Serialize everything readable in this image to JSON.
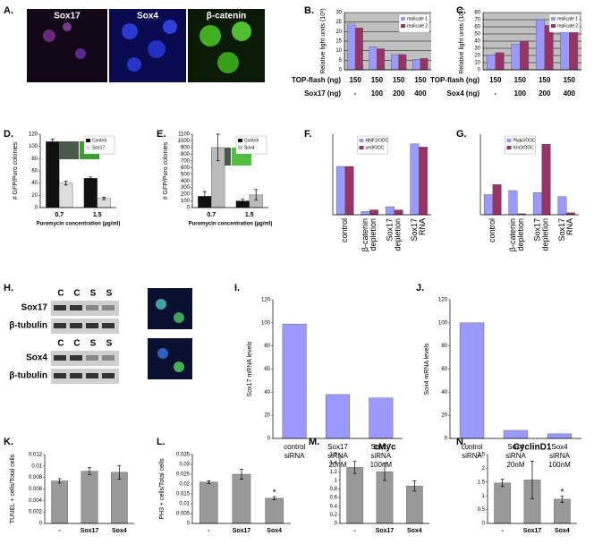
{
  "images": {
    "panel": "A.",
    "labels": [
      "Sox17",
      "Sox4",
      "β-catenin"
    ]
  },
  "blots": {
    "panel": "H.",
    "groups": [
      {
        "lanes": [
          "C",
          "C",
          "S",
          "S"
        ],
        "rows": [
          "Sox17",
          "β-tubulin"
        ]
      },
      {
        "lanes": [
          "C",
          "C",
          "S",
          "S"
        ],
        "rows": [
          "Sox4",
          "β-tubulin"
        ]
      }
    ]
  },
  "chart_data": [
    {
      "type": "bar",
      "panel": "B.",
      "ylabel": "Relative light units (10³)",
      "ylim": [
        0,
        30
      ],
      "yticks": [
        0,
        5,
        10,
        15,
        20,
        25,
        30
      ],
      "grid": true,
      "plot_background": "#c0c0c0",
      "legend": "upper right",
      "series": [
        {
          "name": "replicate 1",
          "color": "#9999ff",
          "values": [
            24,
            12,
            8,
            5.5
          ]
        },
        {
          "name": "replicate 2",
          "color": "#993366",
          "values": [
            22,
            11,
            8,
            6
          ]
        }
      ],
      "table": [
        {
          "label": "TOP-flash (ng)",
          "cells": [
            "150",
            "150",
            "150",
            "150"
          ]
        },
        {
          "label": "Sox17 (ng)",
          "cells": [
            "-",
            "100",
            "200",
            "400"
          ]
        }
      ]
    },
    {
      "type": "bar",
      "panel": "C.",
      "ylabel": "Relative light units (10³)",
      "ylim": [
        0,
        80
      ],
      "yticks": [
        0,
        10,
        20,
        30,
        40,
        50,
        60,
        70,
        80
      ],
      "grid": true,
      "plot_background": "#c0c0c0",
      "legend": "upper right",
      "series": [
        {
          "name": "replicate 1",
          "color": "#9999ff",
          "values": [
            21,
            36,
            70,
            54
          ]
        },
        {
          "name": "replicate 2",
          "color": "#993366",
          "values": [
            24,
            40,
            62,
            66
          ]
        }
      ],
      "table": [
        {
          "label": "TOP-flash (ng)",
          "cells": [
            "150",
            "150",
            "150",
            "150"
          ]
        },
        {
          "label": "Sox4 (ng)",
          "cells": [
            "-",
            "100",
            "200",
            "400"
          ]
        }
      ]
    },
    {
      "type": "bar",
      "panel": "D.",
      "ylabel": "# GFP/Puro colonies",
      "xlabel": "Puromycin concentration (µg/ml)",
      "ylim": [
        0,
        120
      ],
      "yticks": [
        0,
        20,
        40,
        60,
        80,
        100,
        120
      ],
      "legend": "upper right",
      "categories": [
        "0.7",
        "1.5"
      ],
      "series": [
        {
          "name": "Control",
          "color": "#111111",
          "values": [
            108,
            48
          ],
          "errors": [
            4,
            2
          ]
        },
        {
          "name": "Sox17",
          "color": "#dddddd",
          "values": [
            40,
            15
          ],
          "errors": [
            3,
            2
          ]
        }
      ]
    },
    {
      "type": "bar",
      "panel": "E.",
      "ylabel": "# GFP/Puro colonies",
      "xlabel": "Puromycin concentration (µg/ml)",
      "ylim": [
        0,
        1100
      ],
      "yticks": [
        0,
        100,
        200,
        300,
        400,
        500,
        600,
        700,
        800,
        900,
        1000,
        1100
      ],
      "legend": "upper right",
      "categories": [
        "0.7",
        "1.5"
      ],
      "series": [
        {
          "name": "Control",
          "color": "#111111",
          "values": [
            170,
            100
          ],
          "errors": [
            70,
            25
          ]
        },
        {
          "name": "Sox4",
          "color": "#bbbbbb",
          "values": [
            900,
            190
          ],
          "errors": [
            200,
            80
          ]
        }
      ]
    },
    {
      "type": "bar",
      "panel": "F.",
      "ylim": [
        0,
        2.5
      ],
      "legend": "upper left",
      "label_rotation": 90,
      "categories": [
        [
          "control"
        ],
        [
          "β-catenin",
          "depletion"
        ],
        [
          "Sox17",
          "depletion"
        ],
        [
          "Sox17",
          "RNA"
        ]
      ],
      "series": [
        {
          "name": "HNF1/ODC",
          "color": "#9999ff",
          "values": [
            1.5,
            0.1,
            0.25,
            2.2
          ]
        },
        {
          "name": "oed/ODC",
          "color": "#993366",
          "values": [
            1.5,
            0.15,
            0.15,
            2.1
          ]
        }
      ]
    },
    {
      "type": "bar",
      "panel": "G.",
      "ylim": [
        0,
        4
      ],
      "legend": "upper left",
      "label_rotation": 90,
      "categories": [
        [
          "control"
        ],
        [
          "β-catenin",
          "depletion"
        ],
        [
          "Sox17",
          "depletion"
        ],
        [
          "Sox17",
          "RNA"
        ]
      ],
      "series": [
        {
          "name": "Plako/ODC",
          "color": "#9999ff",
          "values": [
            1.0,
            1.2,
            1.1,
            0.9
          ]
        },
        {
          "name": "Xnr3/ODC",
          "color": "#993366",
          "values": [
            1.5,
            0.05,
            3.5,
            0.1
          ]
        }
      ]
    },
    {
      "type": "bar",
      "panel": "I.",
      "ylabel": "Sox17 mRNA levels",
      "ylim": [
        0,
        120
      ],
      "yticks": [
        0,
        20,
        40,
        60,
        80,
        100,
        120
      ],
      "categories": [
        [
          "control",
          "siRNA"
        ],
        [
          "Sox17",
          "siRNA",
          "20nM"
        ],
        [
          "Sox17",
          "siRNA",
          "100nM"
        ]
      ],
      "series": [
        {
          "color": "#9999ff",
          "values": [
            99,
            38,
            35
          ]
        }
      ]
    },
    {
      "type": "bar",
      "panel": "J.",
      "ylabel": "Sox4 mRNA levels",
      "ylim": [
        0,
        120
      ],
      "yticks": [
        0,
        20,
        40,
        60,
        80,
        100,
        120
      ],
      "categories": [
        [
          "control",
          "siRNA"
        ],
        [
          "Sox4",
          "siRNA",
          "20nM"
        ],
        [
          "Sox4",
          "siRNA",
          "100nM"
        ]
      ],
      "series": [
        {
          "color": "#9999ff",
          "values": [
            100,
            7,
            4
          ]
        }
      ]
    },
    {
      "type": "bar",
      "panel": "K.",
      "ylabel": "TUNEL + cells/Total cells",
      "ylim": [
        0,
        0.012
      ],
      "yticks": [
        0,
        0.002,
        0.004,
        0.006,
        0.008,
        0.01,
        0.012
      ],
      "categories": [
        "-",
        "Sox17",
        "Sox4"
      ],
      "series": [
        {
          "color": "#999999",
          "values": [
            0.0074,
            0.0091,
            0.0089
          ],
          "errors": [
            0.0004,
            0.0006,
            0.0012
          ]
        }
      ]
    },
    {
      "type": "bar",
      "panel": "L.",
      "ylabel": "PH3 + cells/Total cells",
      "ylim": [
        0,
        0.035
      ],
      "yticks": [
        0,
        0.005,
        0.01,
        0.015,
        0.02,
        0.025,
        0.03,
        0.035
      ],
      "categories": [
        "-",
        "Sox17",
        "Sox4"
      ],
      "significance": [
        null,
        null,
        "*"
      ],
      "series": [
        {
          "color": "#999999",
          "values": [
            0.021,
            0.025,
            0.0128
          ],
          "errors": [
            0.0007,
            0.0025,
            0.0008
          ]
        }
      ]
    },
    {
      "type": "bar",
      "panel": "M.",
      "title": "cMyc",
      "ylim": [
        0,
        1.6
      ],
      "yticks": [
        0,
        0.2,
        0.4,
        0.6,
        0.8,
        1,
        1.2,
        1.4,
        1.6
      ],
      "categories": [
        "-",
        "Sox17",
        "Sox4"
      ],
      "series": [
        {
          "color": "#999999",
          "values": [
            1.3,
            1.2,
            0.87
          ],
          "errors": [
            0.14,
            0.2,
            0.12
          ]
        }
      ]
    },
    {
      "type": "bar",
      "panel": "N.",
      "title": "CyclinD1",
      "ylim": [
        0,
        2.5
      ],
      "yticks": [
        0,
        0.5,
        1,
        1.5,
        2,
        2.5
      ],
      "categories": [
        "-",
        "Sox17",
        "Sox4"
      ],
      "significance": [
        null,
        null,
        "*"
      ],
      "series": [
        {
          "color": "#999999",
          "values": [
            1.47,
            1.58,
            0.88
          ],
          "errors": [
            0.13,
            0.68,
            0.12
          ]
        }
      ]
    }
  ]
}
